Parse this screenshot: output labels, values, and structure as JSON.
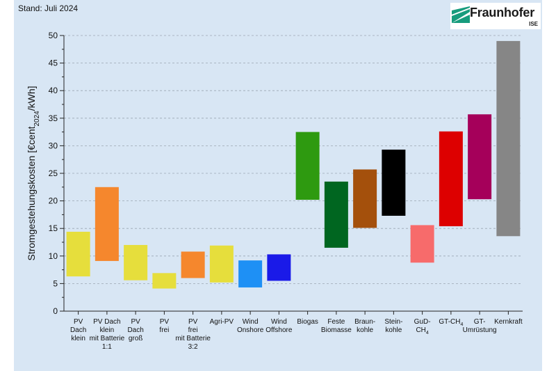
{
  "header": {
    "stand": "Stand: Juli 2024",
    "logo_text": "Fraunhofer",
    "logo_sub": "ISE"
  },
  "chart_data": {
    "type": "bar",
    "subtype": "floating-range",
    "ylabel": "Stromgestehungskosten [€cent2024/kWh]",
    "ylim": [
      0,
      50
    ],
    "yticks": [
      0,
      5,
      10,
      15,
      20,
      25,
      30,
      35,
      40,
      45,
      50
    ],
    "grid": "horizontal-dashed",
    "categories": [
      {
        "label": [
          "PV",
          "Dach",
          "klein"
        ],
        "low": 6.3,
        "high": 14.4,
        "color": "#e6de3c"
      },
      {
        "label": [
          "PV Dach",
          "klein",
          "mit Batterie",
          "1:1"
        ],
        "low": 9.1,
        "high": 22.5,
        "color": "#f5872d"
      },
      {
        "label": [
          "PV",
          "Dach",
          "groß"
        ],
        "low": 5.6,
        "high": 12.0,
        "color": "#e6de3c"
      },
      {
        "label": [
          "PV",
          "frei"
        ],
        "low": 4.1,
        "high": 6.9,
        "color": "#e6de3c"
      },
      {
        "label": [
          "PV",
          "frei",
          "mit Batterie",
          "3:2"
        ],
        "low": 6.0,
        "high": 10.8,
        "color": "#f5872d"
      },
      {
        "label": [
          "Agri-PV"
        ],
        "low": 5.2,
        "high": 11.9,
        "color": "#e6de3c"
      },
      {
        "label": [
          "Wind",
          "Onshore"
        ],
        "low": 4.3,
        "high": 9.2,
        "color": "#1e90f5"
      },
      {
        "label": [
          "Wind",
          "Offshore"
        ],
        "low": 5.5,
        "high": 10.3,
        "color": "#1a1ae8"
      },
      {
        "label": [
          "Biogas"
        ],
        "low": 20.2,
        "high": 32.5,
        "color": "#2e9a10"
      },
      {
        "label": [
          "Feste",
          "Biomasse"
        ],
        "low": 11.5,
        "high": 23.5,
        "color": "#006620"
      },
      {
        "label": [
          "Braun-",
          "kohle"
        ],
        "low": 15.1,
        "high": 25.7,
        "color": "#a4500c"
      },
      {
        "label": [
          "Stein-",
          "kohle"
        ],
        "low": 17.3,
        "high": 29.3,
        "color": "#000000"
      },
      {
        "label": [
          "GuD-",
          "CH4"
        ],
        "low": 8.8,
        "high": 15.6,
        "color": "#f76b6b"
      },
      {
        "label": [
          "GT-CH4"
        ],
        "low": 15.4,
        "high": 32.6,
        "color": "#dd0000"
      },
      {
        "label": [
          "GT-",
          "Umrüstung"
        ],
        "low": 20.3,
        "high": 35.7,
        "color": "#a5005a"
      },
      {
        "label": [
          "Kernkraft"
        ],
        "low": 13.6,
        "high": 49.0,
        "color": "#868686"
      }
    ]
  }
}
